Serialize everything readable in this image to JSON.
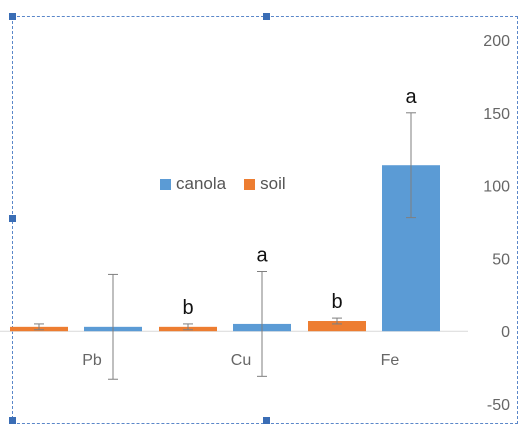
{
  "chart_data": {
    "type": "bar",
    "categories": [
      "Pb",
      "Cu",
      "Fe"
    ],
    "series": [
      {
        "name": "soil",
        "color": "#ED7D31",
        "values": [
          3,
          3,
          7
        ],
        "err": [
          2,
          2,
          2
        ]
      },
      {
        "name": "canola",
        "color": "#5B9BD5",
        "values": [
          3,
          5,
          114
        ],
        "err": [
          36,
          36,
          36
        ]
      }
    ],
    "significance": {
      "soil": [
        "",
        "b",
        "b"
      ],
      "canola": [
        "",
        "a",
        "a"
      ]
    },
    "legend_order": [
      "canola",
      "soil"
    ],
    "ylim": [
      -50,
      200
    ],
    "yticks": [
      200,
      150,
      100,
      50,
      0,
      -50
    ],
    "ytick_labels": [
      "200",
      "150",
      "100",
      "50",
      "0",
      "-50"
    ],
    "yaxis_position": "right",
    "grid": false,
    "legend_position": "center"
  }
}
